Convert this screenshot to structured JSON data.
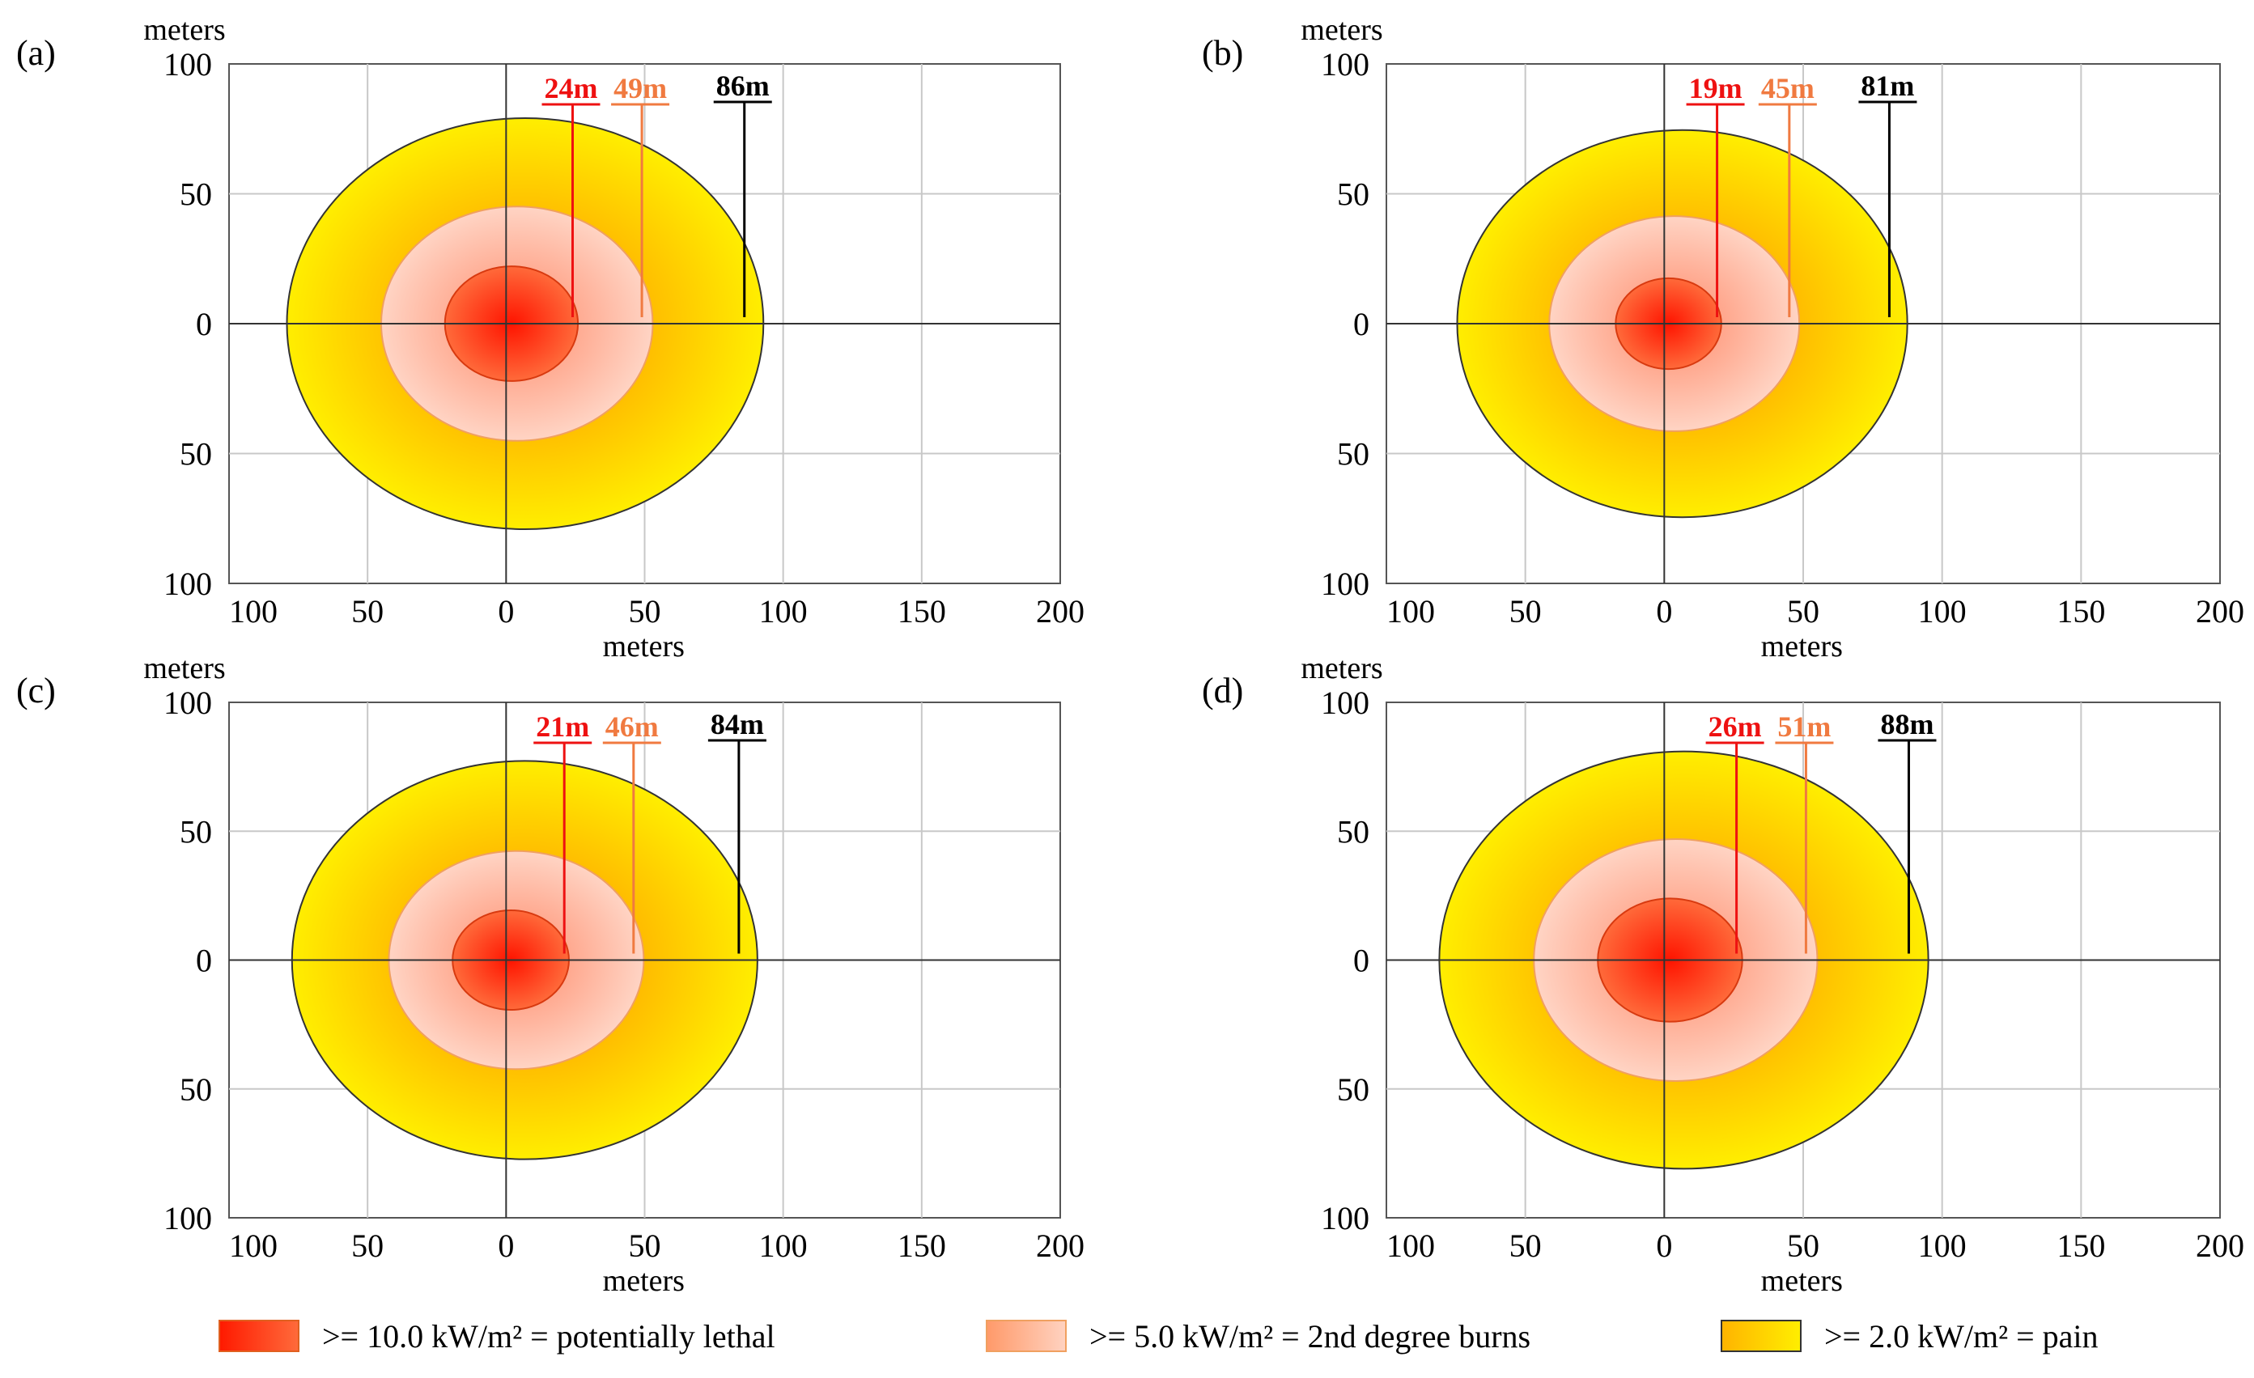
{
  "chart_data": [
    {
      "panel": "(a)",
      "type": "area",
      "axis_label_top": "meters",
      "xlabel": "meters",
      "x_ticks": [
        "100",
        "50",
        "0",
        "50",
        "100",
        "150",
        "200"
      ],
      "y_ticks": [
        "100",
        "50",
        "0",
        "50",
        "100"
      ],
      "xlim": [
        -100,
        200
      ],
      "ylim": [
        -100,
        100
      ],
      "zones": [
        {
          "name": "lethal",
          "radius": 24,
          "label": "24m"
        },
        {
          "name": "burns",
          "radius": 49,
          "label": "49m"
        },
        {
          "name": "pain",
          "radius": 86,
          "label": "86m"
        }
      ]
    },
    {
      "panel": "(b)",
      "type": "area",
      "axis_label_top": "meters",
      "xlabel": "meters",
      "x_ticks": [
        "100",
        "50",
        "0",
        "50",
        "100",
        "150",
        "200"
      ],
      "y_ticks": [
        "100",
        "50",
        "0",
        "50",
        "100"
      ],
      "xlim": [
        -100,
        200
      ],
      "ylim": [
        -100,
        100
      ],
      "zones": [
        {
          "name": "lethal",
          "radius": 19,
          "label": "19m"
        },
        {
          "name": "burns",
          "radius": 45,
          "label": "45m"
        },
        {
          "name": "pain",
          "radius": 81,
          "label": "81m"
        }
      ]
    },
    {
      "panel": "(c)",
      "type": "area",
      "axis_label_top": "meters",
      "xlabel": "meters",
      "x_ticks": [
        "100",
        "50",
        "0",
        "50",
        "100",
        "150",
        "200"
      ],
      "y_ticks": [
        "100",
        "50",
        "0",
        "50",
        "100"
      ],
      "xlim": [
        -100,
        200
      ],
      "ylim": [
        -100,
        100
      ],
      "zones": [
        {
          "name": "lethal",
          "radius": 21,
          "label": "21m"
        },
        {
          "name": "burns",
          "radius": 46,
          "label": "46m"
        },
        {
          "name": "pain",
          "radius": 84,
          "label": "84m"
        }
      ]
    },
    {
      "panel": "(d)",
      "type": "area",
      "axis_label_top": "meters",
      "xlabel": "meters",
      "x_ticks": [
        "100",
        "50",
        "0",
        "50",
        "100",
        "150",
        "200"
      ],
      "y_ticks": [
        "100",
        "50",
        "0",
        "50",
        "100"
      ],
      "xlim": [
        -100,
        200
      ],
      "ylim": [
        -100,
        100
      ],
      "zones": [
        {
          "name": "lethal",
          "radius": 26,
          "label": "26m"
        },
        {
          "name": "burns",
          "radius": 51,
          "label": "51m"
        },
        {
          "name": "pain",
          "radius": 88,
          "label": "88m"
        }
      ]
    }
  ],
  "legend": {
    "lethal": ">= 10.0 kW/m² = potentially  lethal",
    "burns": ">= 5.0 kW/m² = 2nd degree burns",
    "pain": ">= 2.0 kW/m² = pain"
  },
  "colors": {
    "lethal_label": "#ee1111",
    "burns_label": "#f07a40",
    "pain_label": "#000000",
    "yellow": "#ffee00",
    "grid": "#c8c8c8"
  }
}
